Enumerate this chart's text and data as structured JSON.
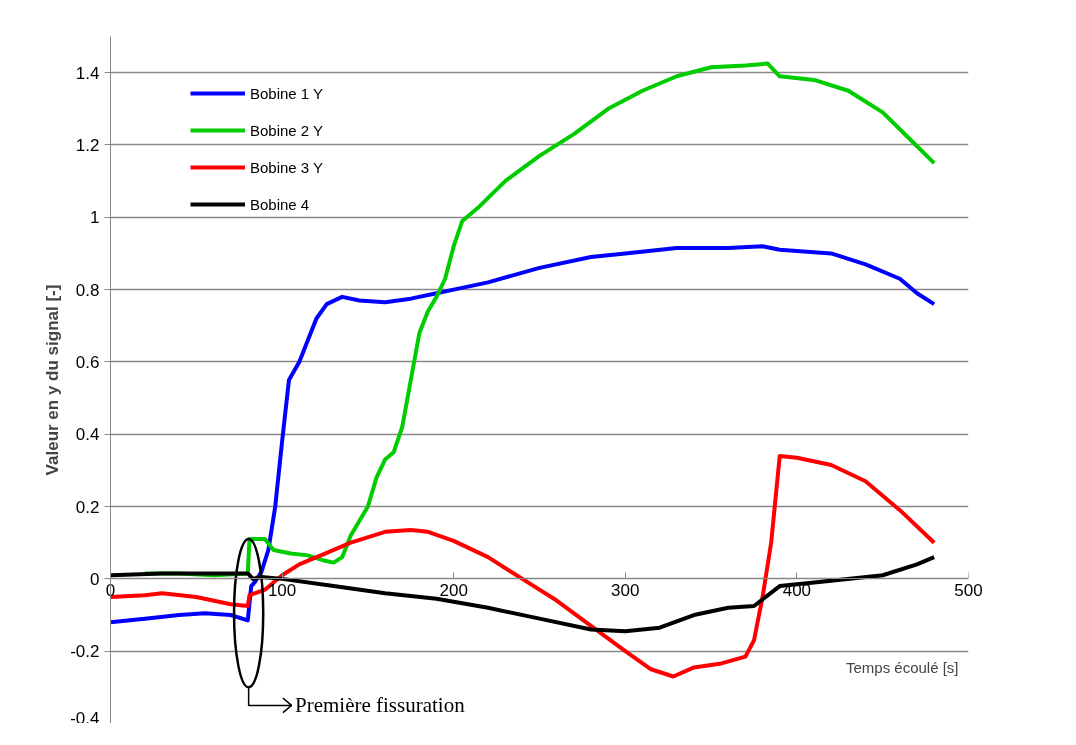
{
  "chart_data": {
    "type": "line",
    "ylabel": "Valeur en y du signal [-]",
    "xlabel": "Temps écoulé [s]",
    "xlim": [
      0,
      500
    ],
    "xticks": [
      0,
      100,
      200,
      300,
      400,
      500
    ],
    "ylim": [
      -0.4,
      1.5
    ],
    "yticks": [
      -0.4,
      -0.2,
      0,
      0.2,
      0.4,
      0.6,
      0.8,
      1,
      1.2,
      1.4
    ],
    "grid": "y",
    "legend": "top left",
    "line_style": "solid",
    "annotations": [
      "Première fissuration"
    ],
    "series": [
      {
        "name": "Bobine 1 Y",
        "color": "#0000ff",
        "x": [
          0,
          20,
          40,
          55,
          70,
          80,
          82,
          84,
          88,
          92,
          96,
          100,
          104,
          110,
          115,
          120,
          126,
          135,
          145,
          160,
          175,
          190,
          200,
          220,
          250,
          280,
          300,
          330,
          360,
          380,
          390,
          420,
          440,
          460,
          470,
          480
        ],
        "values": [
          -0.12,
          -0.11,
          -0.1,
          -0.095,
          -0.1,
          -0.115,
          -0.02,
          -0.01,
          0.02,
          0.08,
          0.2,
          0.38,
          0.55,
          0.6,
          0.66,
          0.72,
          0.76,
          0.78,
          0.77,
          0.765,
          0.775,
          0.79,
          0.8,
          0.82,
          0.86,
          0.89,
          0.9,
          0.915,
          0.915,
          0.92,
          0.91,
          0.9,
          0.87,
          0.83,
          0.79,
          0.76
        ]
      },
      {
        "name": "Bobine 2 Y",
        "color": "#00cc00",
        "x": [
          20,
          40,
          60,
          80,
          81,
          90,
          95,
          105,
          115,
          125,
          130,
          135,
          140,
          150,
          155,
          160,
          165,
          170,
          175,
          180,
          185,
          190,
          195,
          200,
          205,
          215,
          230,
          250,
          270,
          290,
          310,
          330,
          350,
          370,
          383,
          390,
          410,
          430,
          450,
          465,
          480
        ],
        "values": [
          0.015,
          0.015,
          0.01,
          0.015,
          0.11,
          0.11,
          0.08,
          0.07,
          0.065,
          0.05,
          0.045,
          0.06,
          0.12,
          0.2,
          0.28,
          0.33,
          0.35,
          0.42,
          0.55,
          0.68,
          0.74,
          0.78,
          0.83,
          0.92,
          0.99,
          1.03,
          1.1,
          1.17,
          1.23,
          1.3,
          1.35,
          1.39,
          1.415,
          1.42,
          1.425,
          1.39,
          1.38,
          1.35,
          1.29,
          1.22,
          1.15
        ]
      },
      {
        "name": "Bobine 3 Y",
        "color": "#ff0000",
        "x": [
          0,
          20,
          30,
          50,
          70,
          80,
          81,
          90,
          95,
          100,
          110,
          125,
          140,
          160,
          175,
          185,
          200,
          220,
          240,
          260,
          280,
          300,
          315,
          328,
          340,
          355,
          370,
          375,
          380,
          385,
          390,
          400,
          420,
          440,
          460,
          480
        ],
        "values": [
          -0.05,
          -0.045,
          -0.04,
          -0.05,
          -0.07,
          -0.075,
          -0.045,
          -0.03,
          -0.01,
          0.01,
          0.04,
          0.07,
          0.1,
          0.13,
          0.135,
          0.13,
          0.105,
          0.06,
          0.0,
          -0.06,
          -0.13,
          -0.2,
          -0.25,
          -0.27,
          -0.245,
          -0.235,
          -0.215,
          -0.17,
          -0.05,
          0.1,
          0.34,
          0.335,
          0.315,
          0.27,
          0.19,
          0.1
        ]
      },
      {
        "name": "Bobine 4",
        "color": "#000000",
        "x": [
          0,
          30,
          60,
          80,
          83,
          88,
          100,
          130,
          160,
          190,
          220,
          250,
          280,
          300,
          320,
          340,
          360,
          375,
          390,
          400,
          420,
          450,
          470,
          480
        ],
        "values": [
          0.01,
          0.015,
          0.015,
          0.015,
          0.0,
          0.005,
          0.0,
          -0.02,
          -0.04,
          -0.055,
          -0.08,
          -0.11,
          -0.14,
          -0.145,
          -0.135,
          -0.1,
          -0.08,
          -0.075,
          -0.02,
          -0.015,
          -0.005,
          0.01,
          0.04,
          0.06
        ]
      }
    ]
  }
}
